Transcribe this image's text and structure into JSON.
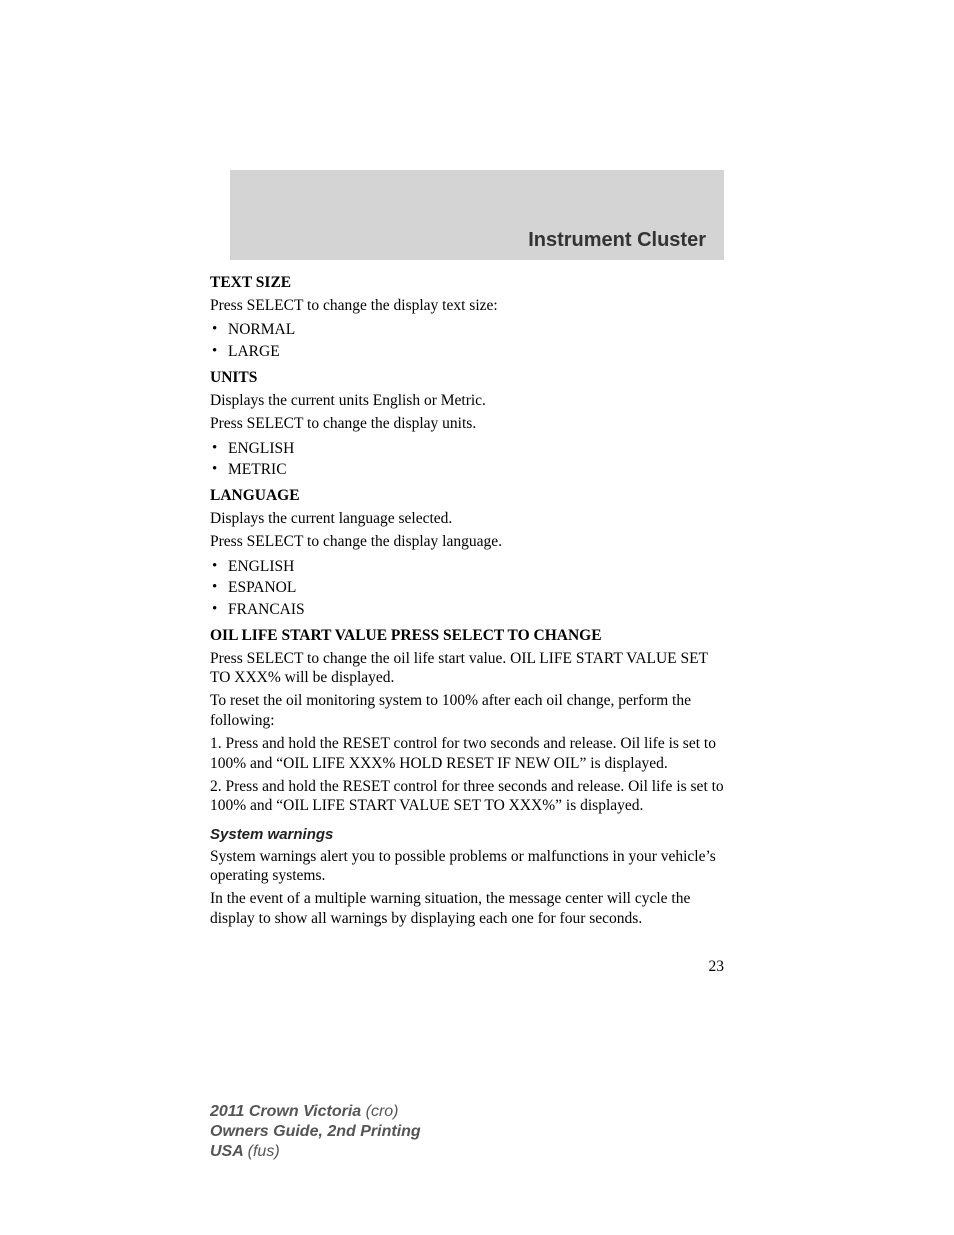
{
  "header": {
    "title": "Instrument Cluster"
  },
  "sections": {
    "textsize": {
      "head": "TEXT SIZE",
      "p1": "Press SELECT to change the display text size:",
      "opts": [
        "NORMAL",
        "LARGE"
      ]
    },
    "units": {
      "head": "UNITS",
      "p1": "Displays the current units English or Metric.",
      "p2": "Press SELECT to change the display units.",
      "opts": [
        "ENGLISH",
        "METRIC"
      ]
    },
    "language": {
      "head": "LANGUAGE",
      "p1": "Displays the current language selected.",
      "p2": "Press SELECT to change the display language.",
      "opts": [
        "ENGLISH",
        "ESPANOL",
        "FRANCAIS"
      ]
    },
    "oillife": {
      "head": "OIL LIFE START VALUE PRESS SELECT TO CHANGE",
      "p1": "Press SELECT to change the oil life start value. OIL LIFE START VALUE SET TO XXX% will be displayed.",
      "p2": "To reset the oil monitoring system to 100% after each oil change, perform the following:",
      "p3": "1. Press and hold the RESET control for two seconds and release. Oil life is set to 100% and “OIL LIFE XXX% HOLD RESET IF NEW OIL” is displayed.",
      "p4": "2. Press and hold the RESET control for three seconds and release. Oil life is set to 100% and “OIL LIFE START VALUE SET TO XXX%” is displayed."
    },
    "syswarn": {
      "head": "System warnings",
      "p1": "System warnings alert you to possible problems or malfunctions in your vehicle’s operating systems.",
      "p2": "In the event of a multiple warning situation, the message center will cycle the display to show all warnings by displaying each one for four seconds."
    }
  },
  "page_number": "23",
  "footer": {
    "l1b": "2011 Crown Victoria ",
    "l1i": "(cro)",
    "l2b": "Owners Guide, 2nd Printing",
    "l3b": "USA ",
    "l3i": "(fus)"
  },
  "colors": {
    "header_band": "#d4d4d4",
    "header_text": "#333333",
    "body_text": "#000000",
    "footer_text": "#555555",
    "background": "#ffffff"
  },
  "typography": {
    "body_font": "Georgia serif",
    "header_font": "Arial sans-serif",
    "body_size_pt": 12,
    "header_size_pt": 15
  }
}
